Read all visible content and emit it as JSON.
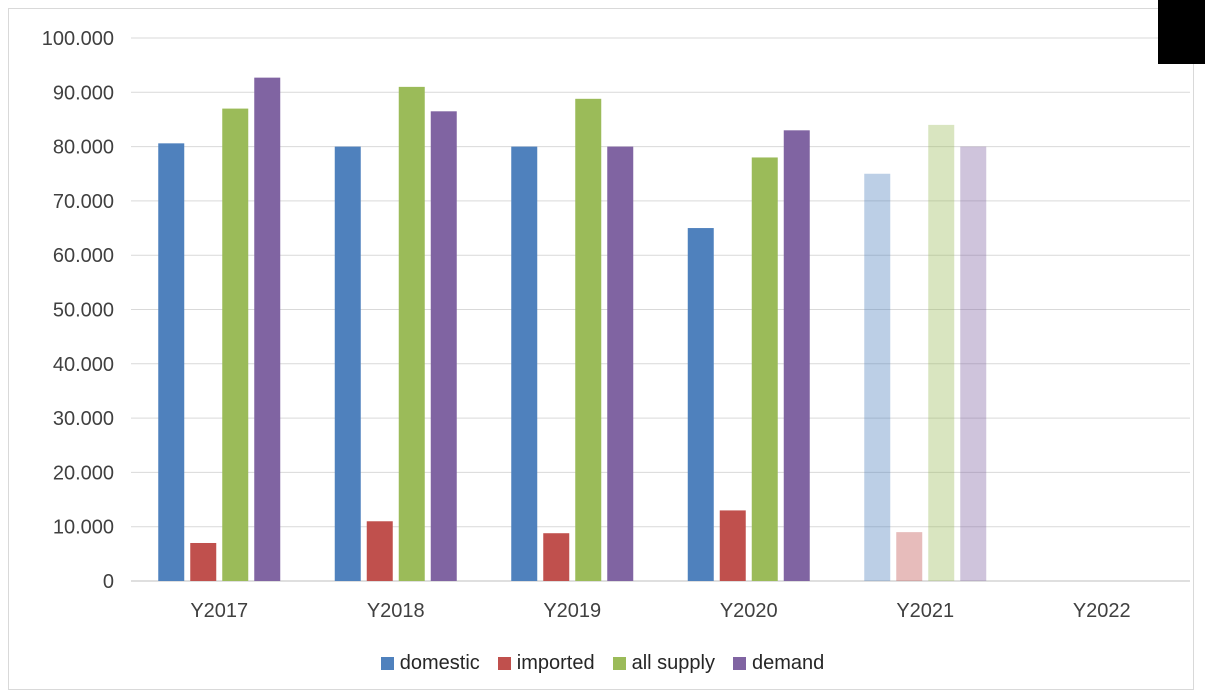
{
  "chart_data": {
    "type": "bar",
    "categories": [
      "Y2017",
      "Y2018",
      "Y2019",
      "Y2020",
      "Y2021",
      "Y2022"
    ],
    "series": [
      {
        "name": "domestic",
        "color": "#4F81BD",
        "values": [
          80.6,
          80.0,
          80.0,
          65.0,
          75.0,
          null
        ]
      },
      {
        "name": "imported",
        "color": "#C0504D",
        "values": [
          7.0,
          11.0,
          8.8,
          13.0,
          9.0,
          null
        ]
      },
      {
        "name": "all supply",
        "color": "#9BBB59",
        "values": [
          87.0,
          91.0,
          88.8,
          78.0,
          84.0,
          null
        ]
      },
      {
        "name": "demand",
        "color": "#8064A2",
        "values": [
          92.7,
          86.5,
          80.0,
          83.0,
          80.0,
          null
        ]
      }
    ],
    "faded_categories": [
      "Y2021"
    ],
    "yticks": [
      "0",
      "10.000",
      "20.000",
      "30.000",
      "40.000",
      "50.000",
      "60.000",
      "70.000",
      "80.000",
      "90.000",
      "100.000"
    ],
    "ylim": [
      0,
      100
    ],
    "grid": true,
    "legend_position": "bottom"
  }
}
